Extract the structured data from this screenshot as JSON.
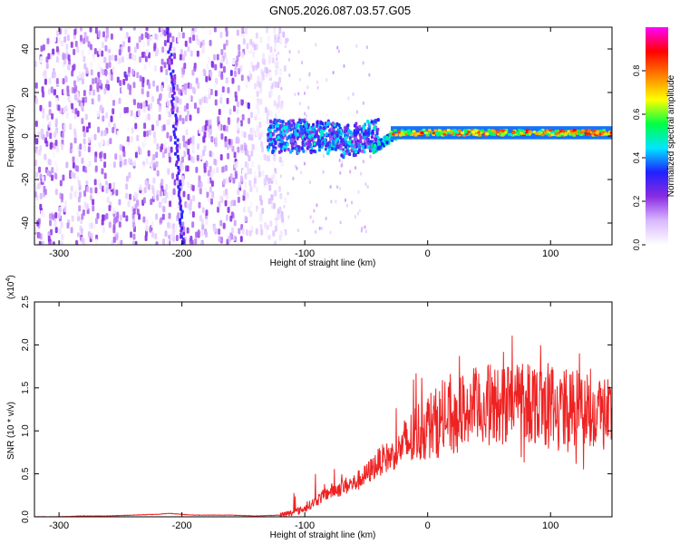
{
  "title": "GN05.2026.087.03.57.G05",
  "chart_data": [
    {
      "type": "heatmap",
      "name": "spectrogram",
      "xlabel": "Height of straight line (km)",
      "ylabel": "Frequency (Hz)",
      "xlim": [
        -320,
        150
      ],
      "ylim": [
        -50,
        50
      ],
      "xticks": [
        -300,
        -200,
        -100,
        0,
        100
      ],
      "xtick_labels": [
        "-300",
        "-200",
        "-100",
        "0",
        "100"
      ],
      "yticks": [
        -40,
        -20,
        0,
        20,
        40
      ],
      "ytick_labels": [
        "-40",
        "-20",
        "0",
        "20",
        "40"
      ],
      "colorbar": {
        "label": "Normalized spectral amplitude",
        "range": [
          0,
          1
        ],
        "ticks": [
          0.0,
          0.2,
          0.4,
          0.6,
          0.8
        ],
        "tick_labels": [
          "0.0",
          "0.2",
          "0.4",
          "0.6",
          "0.8"
        ],
        "colors": [
          "#ffffff",
          "#d9b8ff",
          "#8a2be2",
          "#2020ff",
          "#00e5ff",
          "#00ff44",
          "#ffff00",
          "#ff8000",
          "#ff0000",
          "#ff00ff"
        ]
      },
      "regions": [
        {
          "desc": "broadband noise",
          "x_range": [
            -320,
            -125
          ],
          "freq_range": [
            -50,
            50
          ],
          "level": 0.2
        },
        {
          "desc": "streak",
          "x": -205,
          "freq_range": [
            -50,
            50
          ],
          "level": 0.2
        },
        {
          "desc": "wide band",
          "x_range": [
            -130,
            -40
          ],
          "freq_range": [
            -8,
            8
          ],
          "level": 0.35
        },
        {
          "desc": "signal line",
          "x_range": [
            -30,
            150
          ],
          "freq": 1.5,
          "level": 0.85
        }
      ]
    },
    {
      "type": "line",
      "name": "snr",
      "xlabel": "Height of straight line (km)",
      "ylabel": "SNR (10 * v/v)",
      "scale_label": "(x10",
      "scale_exponent": "4",
      "scale_suffix": ")",
      "xlim": [
        -320,
        150
      ],
      "ylim": [
        0.0,
        2.5
      ],
      "xticks": [
        -300,
        -200,
        -100,
        0,
        100
      ],
      "xtick_labels": [
        "-300",
        "-200",
        "-100",
        "0",
        "100"
      ],
      "yticks": [
        0.0,
        0.5,
        1.0,
        1.5,
        2.0,
        2.5
      ],
      "ytick_labels": [
        "0.0",
        "0.5",
        "1.0",
        "1.5",
        "2.0",
        "2.5"
      ],
      "color": "#ee2222",
      "series": [
        {
          "name": "SNR",
          "x": [
            -320,
            -300,
            -280,
            -260,
            -240,
            -220,
            -210,
            -200,
            -190,
            -180,
            -160,
            -140,
            -120,
            -110,
            -100,
            -95,
            -90,
            -85,
            -80,
            -75,
            -70,
            -65,
            -60,
            -55,
            -50,
            -45,
            -40,
            -35,
            -30,
            -25,
            -20,
            -15,
            -10,
            -5,
            0,
            10,
            20,
            30,
            40,
            50,
            60,
            70,
            75,
            80,
            85,
            90,
            100,
            110,
            120,
            130,
            140,
            150
          ],
          "y": [
            0.0,
            0.0,
            0.01,
            0.01,
            0.02,
            0.03,
            0.04,
            0.03,
            0.02,
            0.02,
            0.02,
            0.01,
            0.02,
            0.05,
            0.1,
            0.15,
            0.2,
            0.25,
            0.3,
            0.32,
            0.35,
            0.38,
            0.4,
            0.45,
            0.5,
            0.58,
            0.65,
            0.7,
            0.72,
            0.78,
            0.85,
            0.9,
            1.0,
            1.05,
            1.1,
            1.15,
            1.2,
            1.28,
            1.32,
            1.35,
            1.35,
            1.4,
            1.42,
            1.45,
            1.38,
            1.4,
            1.35,
            1.3,
            1.32,
            1.3,
            1.28,
            1.25
          ]
        }
      ]
    }
  ]
}
